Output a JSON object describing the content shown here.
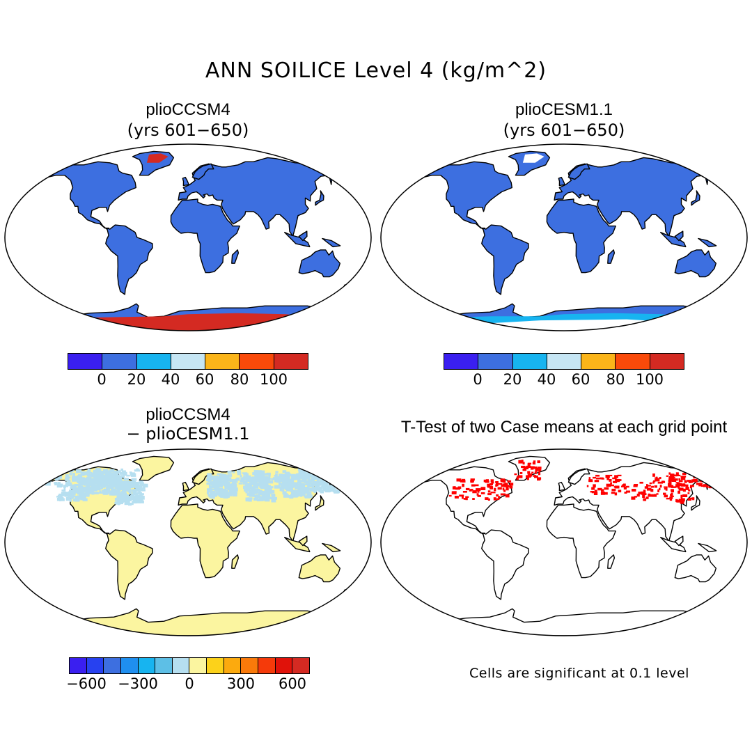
{
  "figure": {
    "title": "ANN SOILICE Level 4 (kg/m^2)"
  },
  "panels": [
    {
      "id": "top-left",
      "title": "plioCCSM4",
      "subtitle": "(yrs 601−650)"
    },
    {
      "id": "top-right",
      "title": "plioCESM1.1",
      "subtitle": "(yrs 601−650)"
    },
    {
      "id": "bottom-left",
      "title": "plioCCSM4",
      "subtitle": "− plioCESM1.1"
    },
    {
      "id": "bottom-right",
      "title": "T-Test of two Case means at each grid point",
      "note": "Cells are significant at 0.1 level"
    }
  ],
  "colorbars": {
    "abs": {
      "colors": [
        "#3a1ff0",
        "#3d6fe0",
        "#17b4f0",
        "#c6e6f4",
        "#fbb51a",
        "#fa4a0a",
        "#d42a22"
      ],
      "labels": [
        "0",
        "20",
        "40",
        "60",
        "80",
        "100"
      ]
    },
    "diff": {
      "colors": [
        "#3a1ff0",
        "#2741f0",
        "#3d6fe0",
        "#1f8ff0",
        "#17b4f0",
        "#5dbfe6",
        "#b6dff0",
        "#fbf5a0",
        "#fcd21a",
        "#fcaa0e",
        "#fa7a0a",
        "#f53a0a",
        "#e0120a",
        "#d42a22"
      ],
      "labels": [
        "−600",
        "−300",
        "0",
        "300",
        "600"
      ]
    }
  },
  "colors": {
    "land_abs": "#3d6fe0",
    "land_diff": "#fbf5a0",
    "diff_negative": "#b6dff0",
    "antarctic_ccsm4": "#d42a22",
    "antarctic_cesm": "#17b4f0",
    "greenland_ccsm4": "#d42a22",
    "greenland_cesm": "#ffffff",
    "significant": "#ff0000"
  }
}
